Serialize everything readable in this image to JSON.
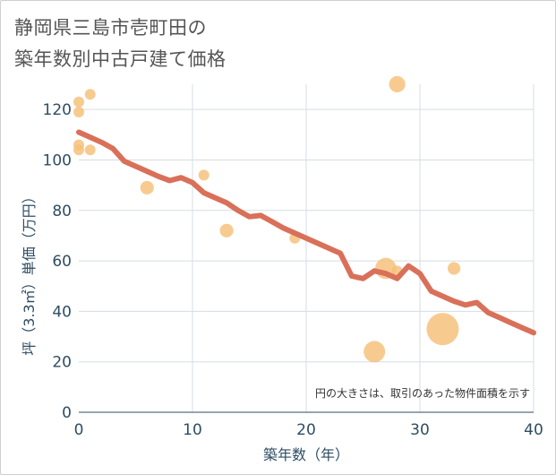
{
  "title_lines": [
    "静岡県三島市壱町田の",
    "築年数別中古戸建て価格"
  ],
  "chart_data": {
    "type": "scatter",
    "title": "静岡県三島市壱町田の築年数別中古戸建て価格",
    "xlabel": "築年数（年）",
    "ylabel": "坪（3.3㎡）単価（万円）",
    "xlim": [
      0,
      40
    ],
    "ylim": [
      0,
      130
    ],
    "xticks": [
      0,
      10,
      20,
      30,
      40
    ],
    "yticks": [
      0,
      20,
      40,
      60,
      80,
      100,
      120
    ],
    "grid": true,
    "note": "円の大きさは、取引のあった物件面積を示す",
    "colors": {
      "bubble": "#f5c078",
      "line": "#d9705a",
      "grid": "#d6dde4",
      "text": "#2e4d63"
    },
    "scatter": [
      {
        "x": 0,
        "y": 123,
        "size": 1
      },
      {
        "x": 0,
        "y": 119,
        "size": 1
      },
      {
        "x": 0,
        "y": 106,
        "size": 1
      },
      {
        "x": 0,
        "y": 104,
        "size": 1
      },
      {
        "x": 1,
        "y": 126,
        "size": 1
      },
      {
        "x": 1,
        "y": 104,
        "size": 1
      },
      {
        "x": 6,
        "y": 89,
        "size": 1.6
      },
      {
        "x": 11,
        "y": 94,
        "size": 1
      },
      {
        "x": 13,
        "y": 72,
        "size": 1.6
      },
      {
        "x": 19,
        "y": 69,
        "size": 1
      },
      {
        "x": 26,
        "y": 24,
        "size": 4
      },
      {
        "x": 27,
        "y": 57,
        "size": 3.9
      },
      {
        "x": 28,
        "y": 130,
        "size": 2.3
      },
      {
        "x": 28,
        "y": 56,
        "size": 1
      },
      {
        "x": 32,
        "y": 33,
        "size": 9
      },
      {
        "x": 33,
        "y": 57,
        "size": 1.4
      }
    ],
    "trend": {
      "x": [
        0,
        1,
        2,
        3,
        4,
        5,
        6,
        7,
        8,
        9,
        10,
        11,
        12,
        13,
        14,
        15,
        16,
        17,
        18,
        19,
        20,
        21,
        22,
        23,
        24,
        25,
        26,
        27,
        28,
        29,
        30,
        31,
        32,
        33,
        34,
        35,
        36,
        37,
        38,
        39,
        40
      ],
      "y": [
        111,
        109,
        107,
        104.5,
        99.5,
        97.5,
        95.5,
        93.5,
        91.8,
        93,
        91,
        87,
        85,
        83,
        80,
        77.5,
        78,
        75.5,
        73,
        71,
        69,
        67,
        65,
        63,
        54,
        53,
        56,
        55,
        53,
        58,
        55,
        48,
        46,
        44,
        42.5,
        43.5,
        39.5,
        37.5,
        35.5,
        33.5,
        31.5
      ]
    }
  }
}
